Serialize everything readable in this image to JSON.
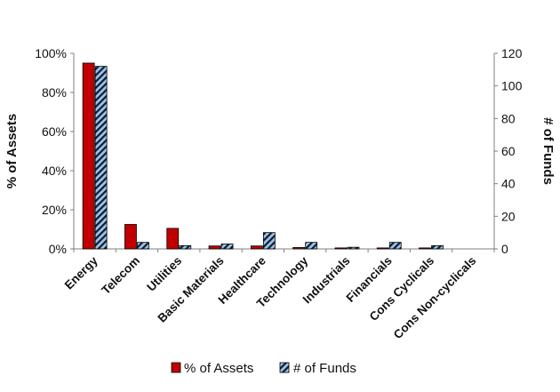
{
  "chart_data": {
    "type": "bar",
    "categories": [
      "Energy",
      "Telecom",
      "Utilities",
      "Basic Materials",
      "Healthcare",
      "Technology",
      "Industrials",
      "Financials",
      "Cons Cyclicals",
      "Cons Non-cyclicals"
    ],
    "series": [
      {
        "name": "% of Assets",
        "axis": "left",
        "values": [
          95,
          12.5,
          10.5,
          1.5,
          1.5,
          0.7,
          0.5,
          0.5,
          0.5,
          0
        ],
        "color": "#c00000"
      },
      {
        "name": "# of Funds",
        "axis": "right",
        "values": [
          112,
          4,
          2,
          3,
          10,
          4,
          1,
          4,
          2,
          0
        ],
        "color": "#9cc3e6",
        "pattern": "diagonal-stripes"
      }
    ],
    "ylabel": "% of Assets",
    "ylabel_right": "# of Funds",
    "ylim": [
      0,
      100
    ],
    "ylim_right": [
      0,
      120
    ],
    "yticks": [
      "0%",
      "20%",
      "40%",
      "60%",
      "80%",
      "100%"
    ],
    "yticks_right": [
      "0",
      "20",
      "40",
      "60",
      "80",
      "100",
      "120"
    ],
    "legend_position": "bottom",
    "grid": false
  }
}
